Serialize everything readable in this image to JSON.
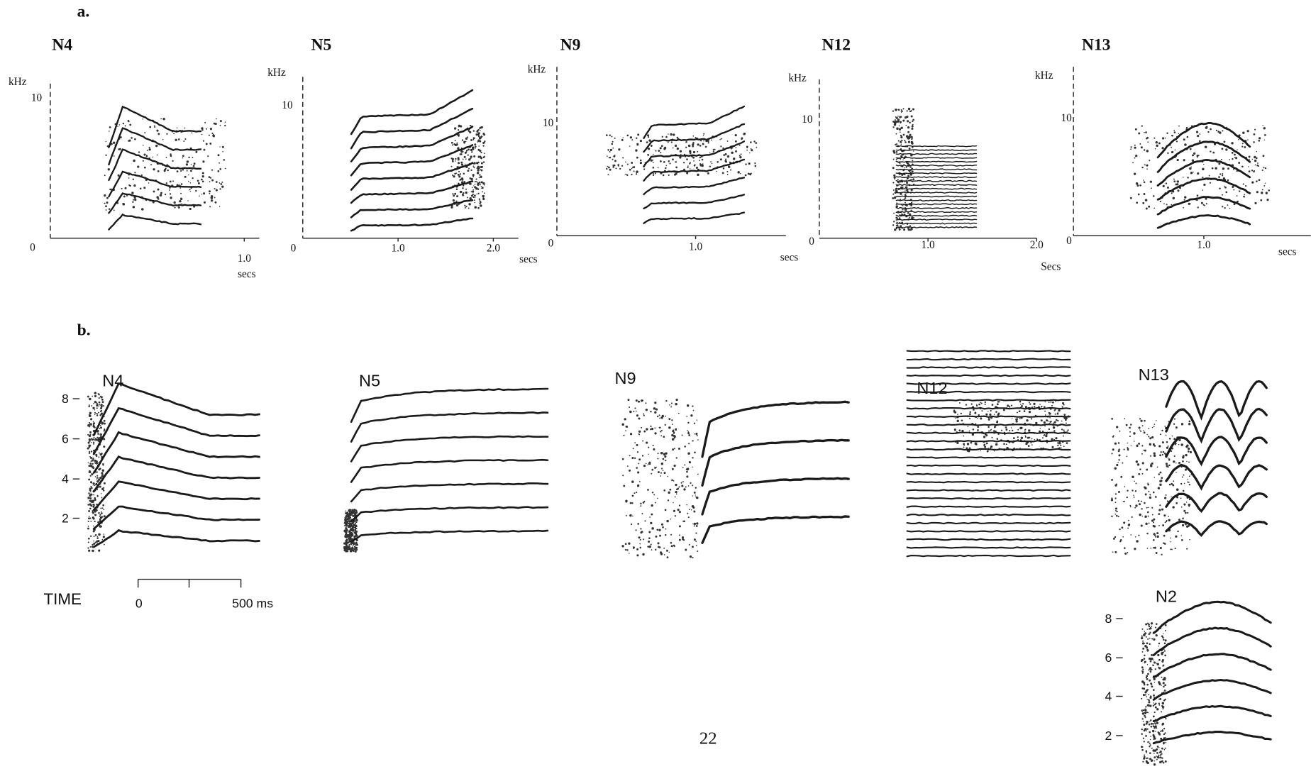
{
  "panel_a": {
    "label": "a.",
    "plots": [
      {
        "title": "N4",
        "y_unit": "kHz",
        "y_ticks": [
          "10",
          "0"
        ],
        "x_ticks": [
          "1.0"
        ],
        "x_unit": "secs"
      },
      {
        "title": "N5",
        "y_unit": "kHz",
        "y_ticks": [
          "10",
          "0"
        ],
        "x_ticks": [
          "1.0",
          "2.0"
        ],
        "x_unit": "secs"
      },
      {
        "title": "N9",
        "y_unit": "kHz",
        "y_ticks": [
          "10",
          "0"
        ],
        "x_ticks": [
          "1.0"
        ],
        "x_unit": "secs"
      },
      {
        "title": "N12",
        "y_unit": "kHz",
        "y_ticks": [
          "10",
          "0"
        ],
        "x_ticks": [
          "1.0",
          "2.0"
        ],
        "x_unit": "Secs"
      },
      {
        "title": "N13",
        "y_unit": "kHz",
        "y_ticks": [
          "10",
          "0"
        ],
        "x_ticks": [
          "1.0"
        ],
        "x_unit": "secs"
      }
    ]
  },
  "panel_b": {
    "label": "b.",
    "plots": [
      {
        "title": "N4",
        "y_ticks": [
          "8",
          "6",
          "4",
          "2"
        ]
      },
      {
        "title": "N5"
      },
      {
        "title": "N9"
      },
      {
        "title": "N12"
      },
      {
        "title": "N13"
      },
      {
        "title": "N2",
        "y_ticks": [
          "8",
          "6",
          "4",
          "2"
        ]
      }
    ],
    "time_scale": {
      "label": "TIME",
      "start": "0",
      "end": "500 ms"
    }
  },
  "page_number": "22"
}
